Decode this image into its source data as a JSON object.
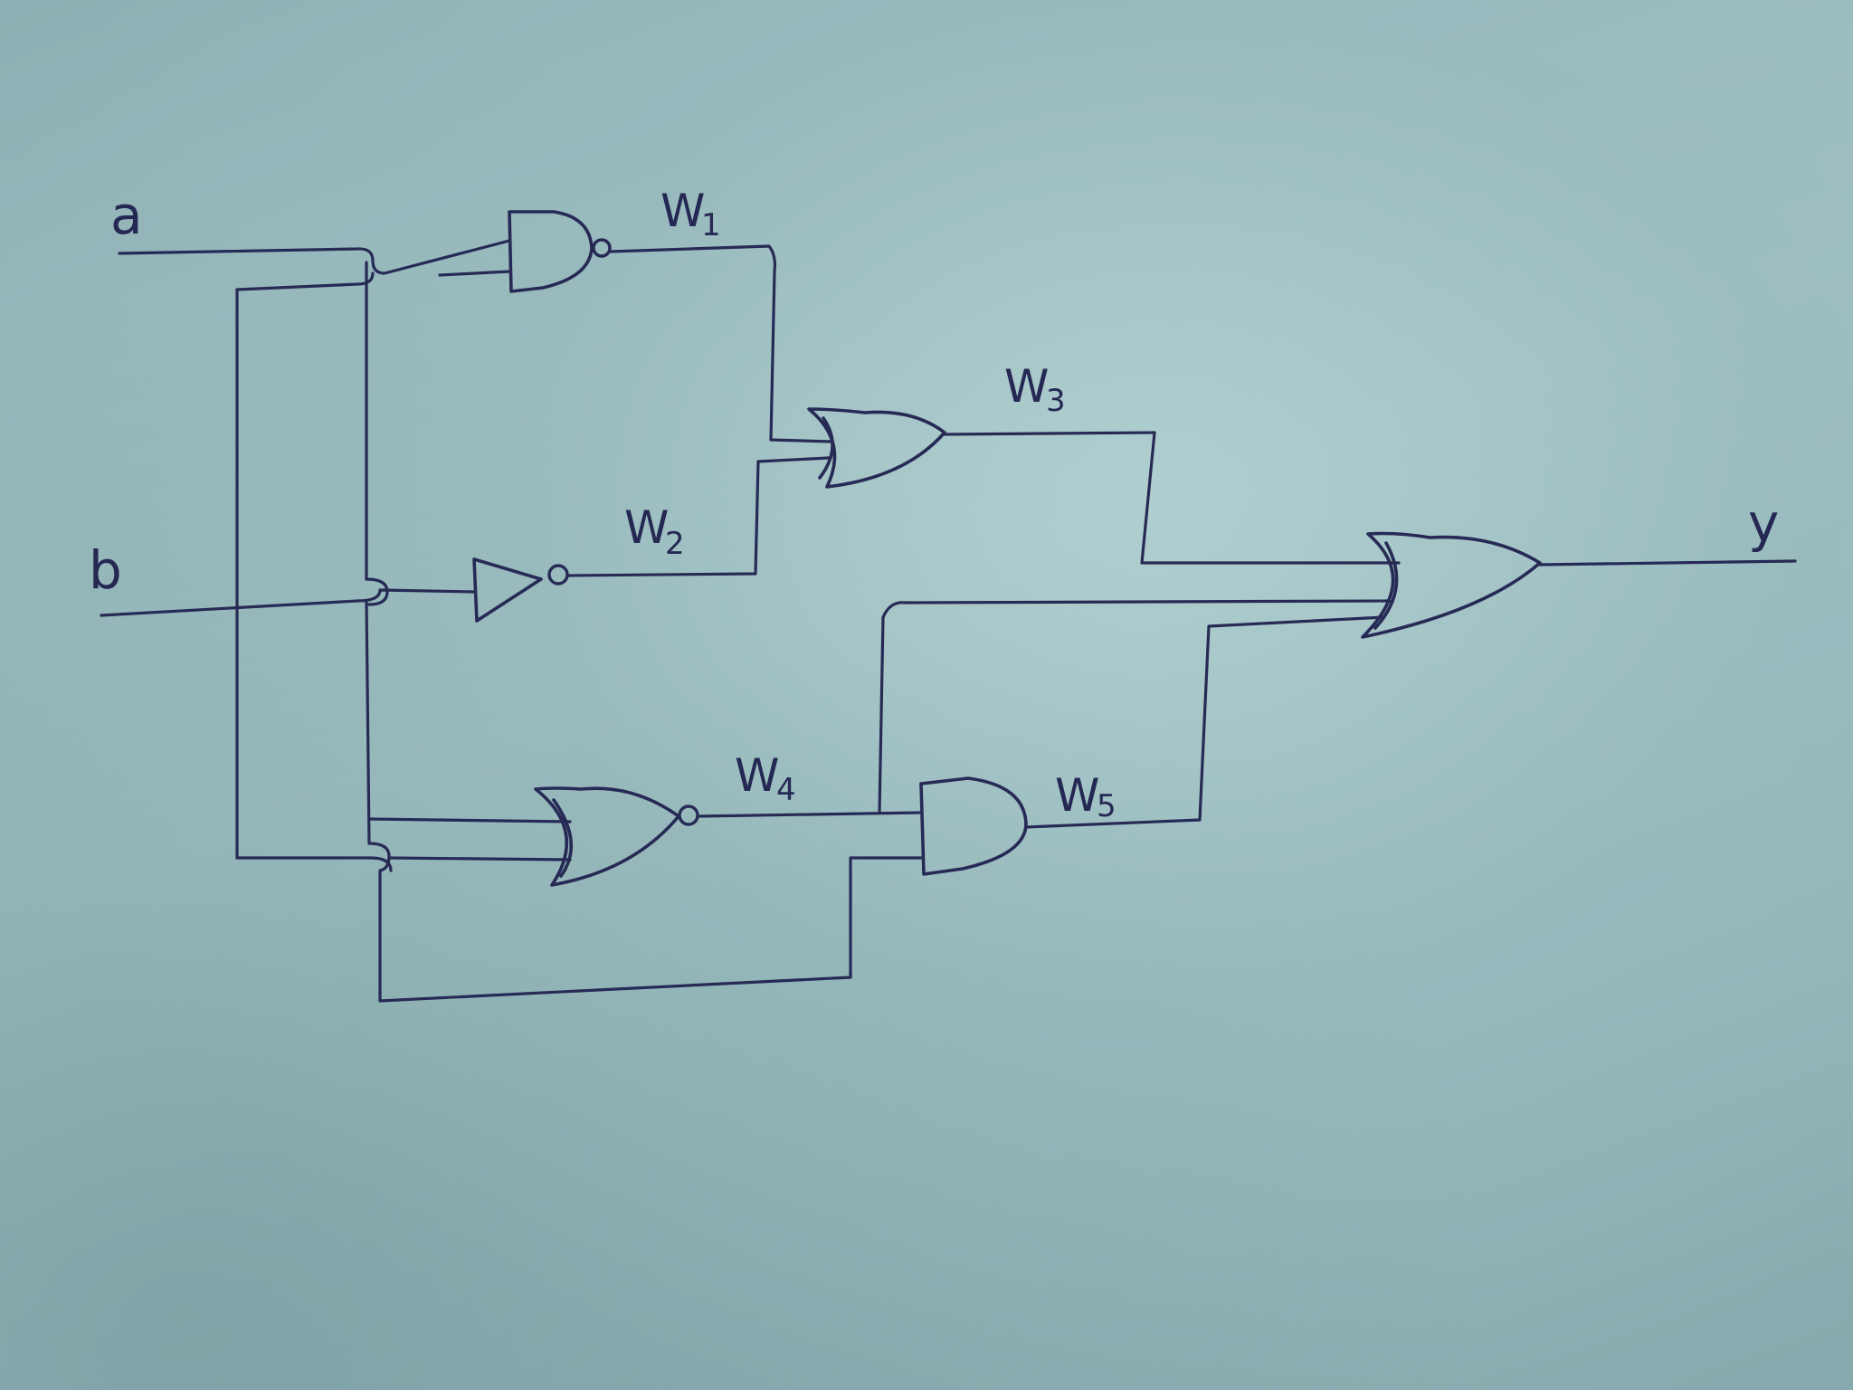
{
  "inputs": {
    "a": "a",
    "b": "b"
  },
  "output": {
    "y": "y"
  },
  "wires": {
    "w1": {
      "letter": "W",
      "sub": "1"
    },
    "w2": {
      "letter": "W",
      "sub": "2"
    },
    "w3": {
      "letter": "W",
      "sub": "3"
    },
    "w4": {
      "letter": "W",
      "sub": "4"
    },
    "w5": {
      "letter": "W",
      "sub": "5"
    }
  },
  "gates": {
    "nand": "nand-gate",
    "not": "not-gate",
    "or_w3": "or-gate",
    "nor": "nor-gate",
    "and": "and-gate",
    "or_out": "or-gate-3-input"
  },
  "colors": {
    "paper": "#9bbcbf",
    "ink": "#262a55"
  }
}
